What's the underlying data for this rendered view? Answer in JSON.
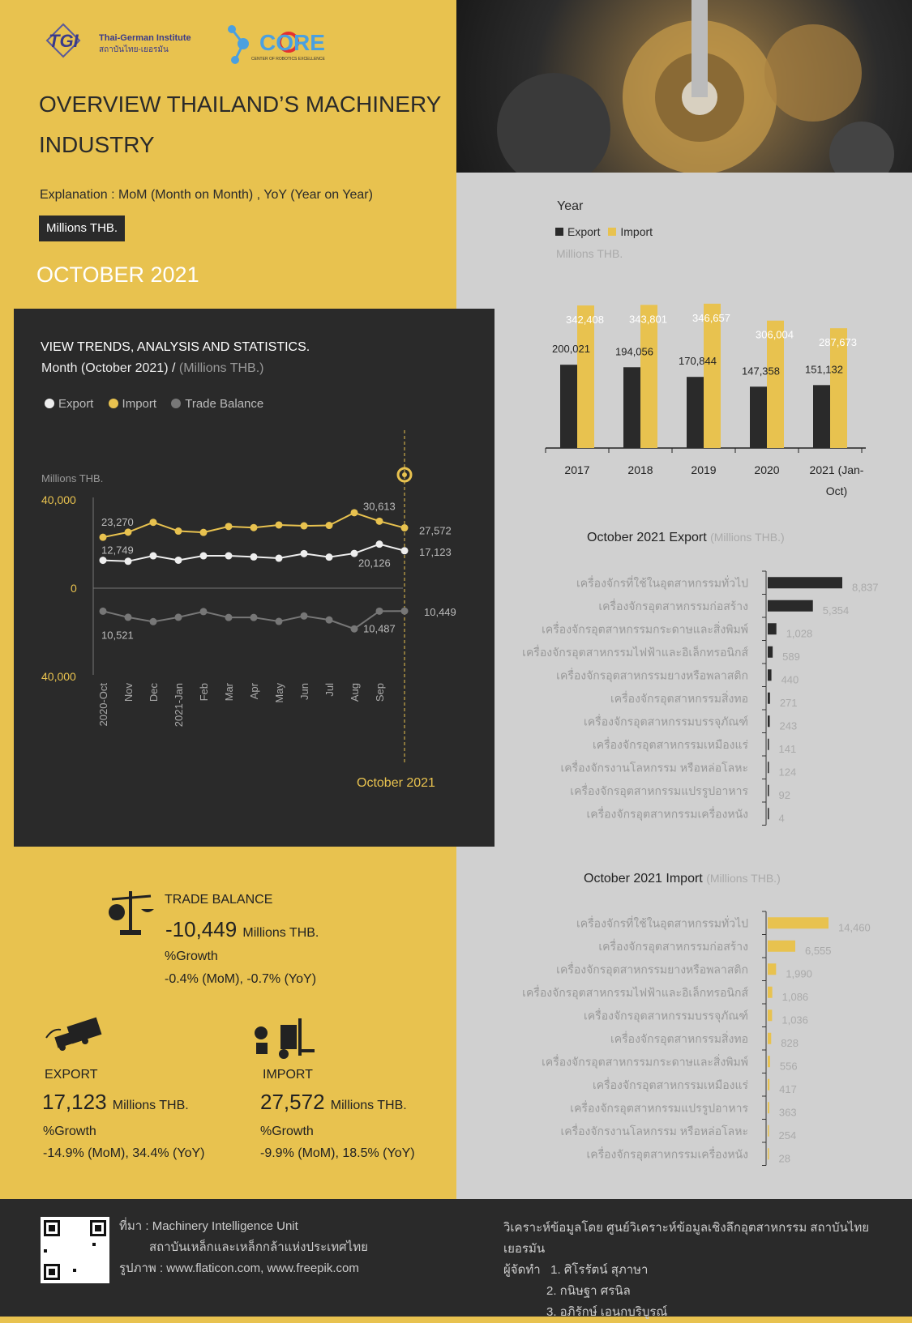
{
  "header": {
    "tgi_logo_text": "TGI",
    "tgi_name_en": "Thai-German Institute",
    "tgi_name_th": "สถาบันไทย-เยอรมัน",
    "core_logo_text": "CORE",
    "core_tagline": "CENTER OF ROBOTICS EXCELLENCE",
    "title": "OVERVIEW THAILAND’S MACHINERY INDUSTRY",
    "explanation": "Explanation : MoM (Month on Month) , YoY (Year on Year)",
    "unit_badge": "Millions THB.",
    "month_title": "OCTOBER 2021"
  },
  "trend": {
    "title": "VIEW TRENDS, ANALYSIS AND STATISTICS.",
    "subtitle": "Month (October 2021) / ",
    "subtitle_unit": "(Millions THB.)",
    "legend": [
      "Export",
      "Import",
      "Trade Balance"
    ],
    "axis_unit": "Millions THB.",
    "marker_label": "October 2021"
  },
  "year_chart": {
    "title": "Year",
    "legend": [
      "Export",
      "Import"
    ],
    "unit": "Millions THB."
  },
  "export_chart": {
    "title": "October 2021 Export",
    "unit": "(Millions THB.)"
  },
  "import_chart": {
    "title": "October 2021 Import",
    "unit": "(Millions THB.)"
  },
  "trade_balance": {
    "label": "TRADE BALANCE",
    "value": "-10,449",
    "unit": "Millions THB.",
    "growth_label": "%Growth",
    "growth": "-0.4% (MoM), -0.7% (YoY)"
  },
  "export_summary": {
    "label": "EXPORT",
    "value": "17,123",
    "unit": "Millions THB.",
    "growth_label": "%Growth",
    "growth": "-14.9% (MoM), 34.4% (YoY)"
  },
  "import_summary": {
    "label": "IMPORT",
    "value": "27,572",
    "unit": "Millions THB.",
    "growth_label": "%Growth",
    "growth": "-9.9% (MoM), 18.5% (YoY)"
  },
  "footer": {
    "source_line1": "ที่มา : Machinery Intelligence Unit",
    "source_line2": "สถาบันเหล็กและเหล็กกล้าแห่งประเทศไทย",
    "images_credit": "รูปภาพ : www.flaticon.com, www.freepik.com",
    "analysis_by": "วิเคราะห์ข้อมูลโดย ศูนย์วิเคราะห์ข้อมูลเชิงลึกอุตสาหกรรม สถาบันไทย เยอรมัน",
    "prepared_by_label": "ผู้จัดทำ",
    "authors": [
      "1. ศิโรรัตน์ สุภาษา",
      "2. กนิษฐา ศรนิล",
      "3. อภิรักษ์ เอนกบริบูรณ์"
    ]
  },
  "colors": {
    "yellow": "#e8c24f",
    "dark": "#2a2a2a",
    "gray": "#d0d0d0"
  },
  "chart_data": [
    {
      "type": "line",
      "title": "VIEW TRENDS, ANALYSIS AND STATISTICS.",
      "ylabel": "Millions THB.",
      "ylim": [
        -40000,
        40000
      ],
      "y_tick_labels": [
        "40,000",
        "0",
        "40,000"
      ],
      "categories": [
        "2020-Oct",
        "Nov",
        "Dec",
        "2021-Jan",
        "Feb",
        "Mar",
        "Apr",
        "May",
        "Jun",
        "Jul",
        "Aug",
        "Sep",
        ""
      ],
      "series": [
        {
          "name": "Export",
          "color": "#ffffff",
          "values": [
            12749,
            12300,
            14800,
            12800,
            14800,
            14800,
            14300,
            13700,
            15800,
            14200,
            15900,
            20126,
            17123
          ]
        },
        {
          "name": "Import",
          "color": "#e8c24f",
          "values": [
            23270,
            25600,
            30100,
            26100,
            25500,
            28200,
            27700,
            28900,
            28500,
            28700,
            34500,
            30613,
            27572
          ]
        },
        {
          "name": "Trade Balance",
          "color": "#888888",
          "values": [
            -10521,
            -13300,
            -15300,
            -13300,
            -10700,
            -13400,
            -13400,
            -15200,
            -12700,
            -14500,
            -18600,
            -10487,
            -10449
          ]
        }
      ],
      "data_labels": {
        "Export": {
          "0": "12,749",
          "11": "20,126",
          "12": "17,123"
        },
        "Import": {
          "0": "23,270",
          "11": "30,613",
          "12": "27,572"
        },
        "Trade Balance": {
          "0": "10,521",
          "11": "10,487",
          "12": "10,449"
        }
      },
      "grid": false
    },
    {
      "type": "bar",
      "title": "Year",
      "categories": [
        "2017",
        "2018",
        "2019",
        "2020",
        "2021 (Jan-Oct)"
      ],
      "series": [
        {
          "name": "Export",
          "color": "#2a2a2a",
          "values": [
            200021,
            194056,
            170844,
            147358,
            151132
          ]
        },
        {
          "name": "Import",
          "color": "#e8c24f",
          "values": [
            342408,
            343801,
            346657,
            306004,
            287673
          ]
        }
      ],
      "value_labels": {
        "Export": [
          "200,021",
          "194,056",
          "170,844",
          "147,358",
          "151,132"
        ],
        "Import": [
          "342,408",
          "343,801",
          "346,657",
          "306,004",
          "287,673"
        ]
      },
      "ylim": [
        0,
        360000
      ]
    },
    {
      "type": "bar",
      "orientation": "horizontal",
      "title": "October 2021 Export",
      "categories": [
        "เครื่องจักรที่ใช้ในอุตสาหกรรมทั่วไป",
        "เครื่องจักรอุตสาหกรรมก่อสร้าง",
        "เครื่องจักรอุตสาหกรรมกระดาษและสิ่งพิมพ์",
        "เครื่องจักรอุตสาหกรรมไฟฟ้าและอิเล็กทรอนิกส์",
        "เครื่องจักรอุตสาหกรรมยางหรือพลาสติก",
        "เครื่องจักรอุตสาหกรรมสิ่งทอ",
        "เครื่องจักรอุตสาหกรรมบรรจุภัณฑ์",
        "เครื่องจักรอุตสาหกรรมเหมืองแร่",
        "เครื่องจักรงานโลหกรรม หรือหล่อโลหะ",
        "เครื่องจักรอุตสาหกรรมแปรรูปอาหาร",
        "เครื่องจักรอุตสาหกรรมเครื่องหนัง"
      ],
      "values": [
        8837,
        5354,
        1028,
        589,
        440,
        271,
        243,
        141,
        124,
        92,
        4
      ],
      "value_labels": [
        "8,837",
        "5,354",
        "1,028",
        "589",
        "440",
        "271",
        "243",
        "141",
        "124",
        "92",
        "4"
      ],
      "color": "#2a2a2a"
    },
    {
      "type": "bar",
      "orientation": "horizontal",
      "title": "October 2021 Import",
      "categories": [
        "เครื่องจักรที่ใช้ในอุตสาหกรรมทั่วไป",
        "เครื่องจักรอุตสาหกรรมก่อสร้าง",
        "เครื่องจักรอุตสาหกรรมยางหรือพลาสติก",
        "เครื่องจักรอุตสาหกรรมไฟฟ้าและอิเล็กทรอนิกส์",
        "เครื่องจักรอุตสาหกรรมบรรจุภัณฑ์",
        "เครื่องจักรอุตสาหกรรมสิ่งทอ",
        "เครื่องจักรอุตสาหกรรมกระดาษและสิ่งพิมพ์",
        "เครื่องจักรอุตสาหกรรมเหมืองแร่",
        "เครื่องจักรอุตสาหกรรมแปรรูปอาหาร",
        "เครื่องจักรงานโลหกรรม หรือหล่อโลหะ",
        "เครื่องจักรอุตสาหกรรมเครื่องหนัง"
      ],
      "values": [
        14460,
        6555,
        1990,
        1086,
        1036,
        828,
        556,
        417,
        363,
        254,
        28
      ],
      "value_labels": [
        "14,460",
        "6,555",
        "1,990",
        "1,086",
        "1,036",
        "828",
        "556",
        "417",
        "363",
        "254",
        "28"
      ],
      "color": "#e8c24f"
    }
  ]
}
